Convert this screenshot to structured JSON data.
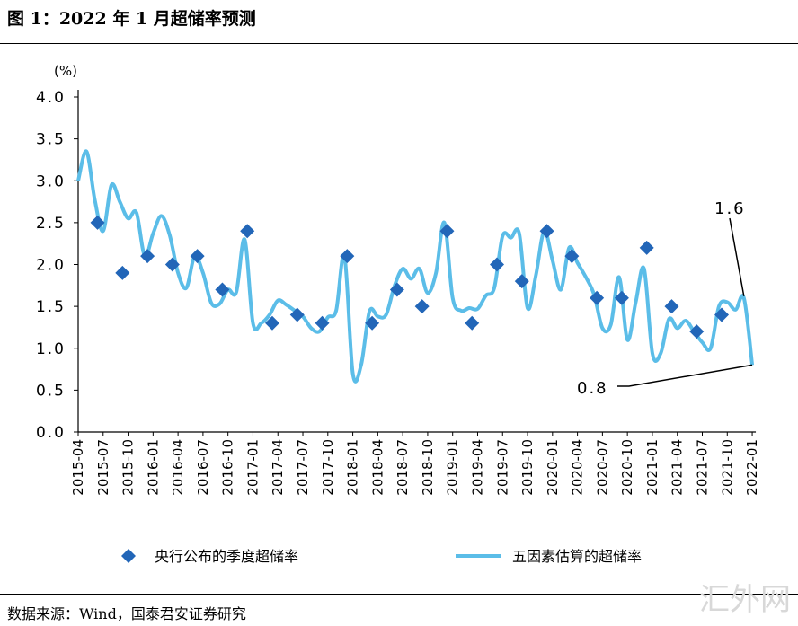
{
  "header": {
    "title": "图 1：2022 年 1 月超储率预测"
  },
  "footer": {
    "source": "数据来源：Wind，国泰君安证券研究",
    "watermark": "汇外网"
  },
  "colors": {
    "line": "#5bbde8",
    "diamond": "#2266b8"
  },
  "chart_data": {
    "type": "line",
    "title": "2022 年 1 月超储率预测",
    "ylabel": "(%)",
    "ylim": [
      0,
      4.0
    ],
    "yticks": [
      "0.0",
      "0.5",
      "1.0",
      "1.5",
      "2.0",
      "2.5",
      "3.0",
      "3.5",
      "4.0"
    ],
    "xticks": [
      "2015-04",
      "2015-07",
      "2015-10",
      "2016-01",
      "2016-04",
      "2016-07",
      "2016-10",
      "2017-01",
      "2017-04",
      "2017-07",
      "2017-10",
      "2018-01",
      "2018-04",
      "2018-07",
      "2018-10",
      "2019-01",
      "2019-04",
      "2019-07",
      "2019-10",
      "2020-01",
      "2020-04",
      "2020-07",
      "2020-10",
      "2021-01",
      "2021-04",
      "2021-07",
      "2021-10",
      "2022-01"
    ],
    "x_start": "2015-04",
    "series": [
      {
        "name": "五因素估算的超储率",
        "kind": "line",
        "values": [
          3.0,
          3.35,
          2.77,
          2.4,
          2.95,
          2.75,
          2.55,
          2.62,
          2.1,
          2.37,
          2.58,
          2.35,
          1.9,
          1.72,
          2.1,
          1.9,
          1.54,
          1.53,
          1.7,
          1.67,
          2.3,
          1.3,
          1.3,
          1.4,
          1.57,
          1.52,
          1.45,
          1.38,
          1.24,
          1.2,
          1.37,
          1.45,
          2.1,
          0.7,
          0.8,
          1.44,
          1.38,
          1.4,
          1.74,
          1.95,
          1.83,
          1.95,
          1.66,
          1.9,
          2.5,
          1.6,
          1.45,
          1.48,
          1.47,
          1.63,
          1.72,
          2.34,
          2.32,
          2.37,
          1.48,
          1.87,
          2.4,
          2.05,
          1.7,
          2.2,
          2.02,
          1.85,
          1.64,
          1.24,
          1.28,
          1.85,
          1.1,
          1.55,
          1.95,
          0.94,
          0.94,
          1.35,
          1.24,
          1.33,
          1.2,
          1.07,
          1.0,
          1.5,
          1.55,
          1.46,
          1.6,
          0.8
        ]
      },
      {
        "name": "央行公布的季度超储率",
        "kind": "scatter",
        "x": [
          "2015-06",
          "2015-09",
          "2015-12",
          "2016-03",
          "2016-06",
          "2016-09",
          "2016-12",
          "2017-03",
          "2017-06",
          "2017-09",
          "2017-12",
          "2018-03",
          "2018-06",
          "2018-09",
          "2018-12",
          "2019-03",
          "2019-06",
          "2019-09",
          "2019-12",
          "2020-03",
          "2020-06",
          "2020-09",
          "2020-12",
          "2021-03",
          "2021-06",
          "2021-09"
        ],
        "values": [
          2.5,
          1.9,
          2.1,
          2.0,
          2.1,
          1.7,
          2.4,
          1.3,
          1.4,
          1.3,
          2.1,
          1.3,
          1.7,
          1.5,
          2.4,
          1.3,
          2.0,
          1.8,
          2.4,
          2.1,
          1.6,
          1.6,
          2.2,
          1.5,
          1.2,
          1.4
        ]
      }
    ],
    "annotations": [
      "1.6",
      "0.8"
    ],
    "legend": {
      "position": "bottom",
      "items": [
        "央行公布的季度超储率",
        "五因素估算的超储率"
      ]
    }
  }
}
